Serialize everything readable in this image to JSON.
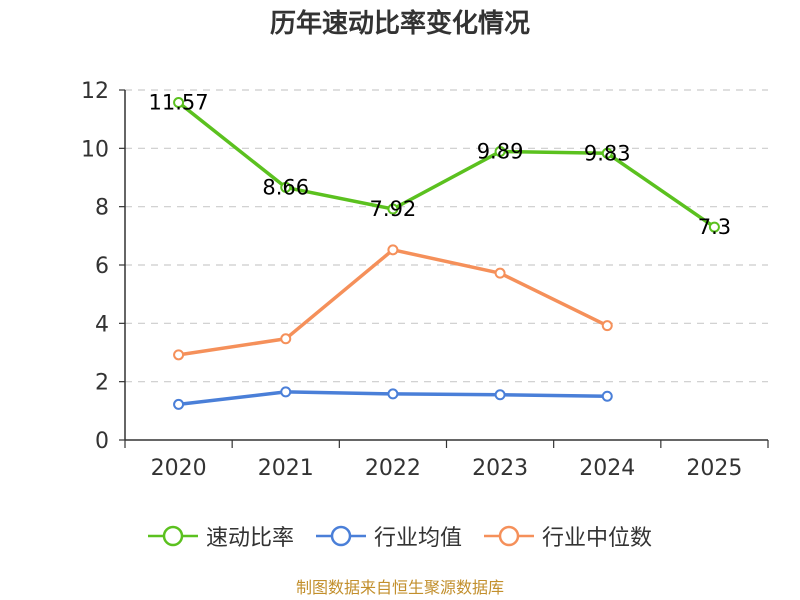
{
  "chart_data": {
    "type": "line",
    "title": "历年速动比率变化情况",
    "categories": [
      "2020",
      "2021",
      "2022",
      "2023",
      "2024",
      "2025"
    ],
    "ylim": [
      0,
      12
    ],
    "yticks": [
      0,
      2,
      4,
      6,
      8,
      10,
      12
    ],
    "grid": true,
    "legend_position": "bottom",
    "series": [
      {
        "name": "速动比率",
        "color": "#5bc11f",
        "values": [
          11.57,
          8.66,
          7.92,
          9.89,
          9.83,
          7.3
        ],
        "labels": [
          "11.57",
          "8.66",
          "7.92",
          "9.89",
          "9.83",
          "7.3"
        ]
      },
      {
        "name": "行业均值",
        "color": "#4a7fd8",
        "values": [
          1.22,
          1.65,
          1.58,
          1.55,
          1.5,
          null
        ]
      },
      {
        "name": "行业中位数",
        "color": "#f5905a",
        "values": [
          2.92,
          3.47,
          6.52,
          5.72,
          3.92,
          null
        ]
      }
    ]
  },
  "source": "制图数据来自恒生聚源数据库"
}
